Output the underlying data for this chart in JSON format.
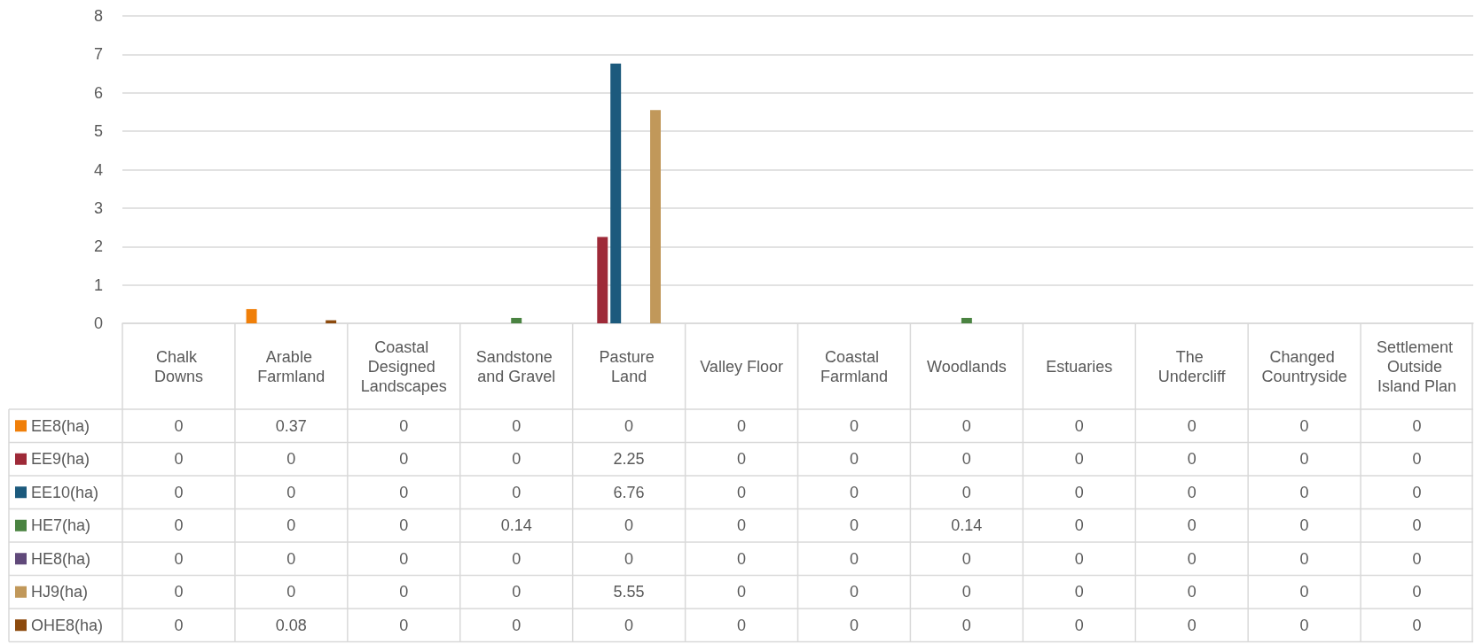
{
  "chart_data": {
    "type": "bar",
    "categories": [
      "Chalk Downs",
      "Arable Farmland",
      "Coastal Designed Landscapes",
      "Sandstone and Gravel",
      "Pasture Land",
      "Valley Floor",
      "Coastal Farmland",
      "Woodlands",
      "Estuaries",
      "The Undercliff",
      "Changed Countryside",
      "Settlement Outside Island Plan"
    ],
    "series": [
      {
        "name": "EE8(ha)",
        "color": "#f07f09",
        "values": [
          0,
          0.37,
          0,
          0,
          0,
          0,
          0,
          0,
          0,
          0,
          0,
          0
        ]
      },
      {
        "name": "EE9(ha)",
        "color": "#9e2a38",
        "values": [
          0,
          0,
          0,
          0,
          2.25,
          0,
          0,
          0,
          0,
          0,
          0,
          0
        ]
      },
      {
        "name": "EE10(ha)",
        "color": "#1c5a7d",
        "values": [
          0,
          0,
          0,
          0,
          6.76,
          0,
          0,
          0,
          0,
          0,
          0,
          0
        ]
      },
      {
        "name": "HE7(ha)",
        "color": "#4a8341",
        "values": [
          0,
          0,
          0,
          0.14,
          0,
          0,
          0,
          0.14,
          0,
          0,
          0,
          0
        ]
      },
      {
        "name": "HE8(ha)",
        "color": "#60497a",
        "values": [
          0,
          0,
          0,
          0,
          0,
          0,
          0,
          0,
          0,
          0,
          0,
          0
        ]
      },
      {
        "name": "HJ9(ha)",
        "color": "#c1985a",
        "values": [
          0,
          0,
          0,
          0,
          5.55,
          0,
          0,
          0,
          0,
          0,
          0,
          0
        ]
      },
      {
        "name": "OHE8(ha)",
        "color": "#8c4a0d",
        "values": [
          0,
          0.08,
          0,
          0,
          0,
          0,
          0,
          0,
          0,
          0,
          0,
          0
        ]
      }
    ],
    "ylim": [
      0,
      8
    ],
    "yticks": [
      0,
      1,
      2,
      3,
      4,
      5,
      6,
      7,
      8
    ],
    "grid": "y",
    "legend": "bottom left",
    "data_labels": true
  }
}
